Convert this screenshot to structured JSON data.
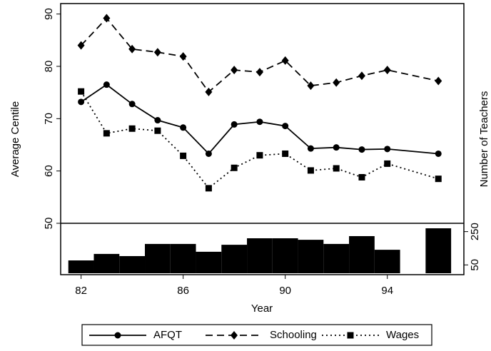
{
  "chart_data": {
    "type": "line",
    "x_label": "Year",
    "y_label": "Average Centile",
    "y2_label": "Number of Teachers",
    "x": [
      82,
      83,
      84,
      85,
      86,
      87,
      88,
      89,
      90,
      91,
      92,
      93,
      94,
      96
    ],
    "series": [
      {
        "name": "AFQT",
        "color": "#000000",
        "dash": "solid",
        "marker": "circle",
        "values": [
          73.2,
          76.5,
          72.8,
          69.7,
          68.3,
          63.3,
          68.9,
          69.4,
          68.6,
          64.3,
          64.5,
          64.1,
          64.2,
          63.3
        ]
      },
      {
        "name": "Schooling",
        "color": "#000000",
        "dash": "dashed",
        "marker": "diamond",
        "values": [
          84,
          89.2,
          83.3,
          82.7,
          81.9,
          75.1,
          79.3,
          78.9,
          81.1,
          76.3,
          76.9,
          78.2,
          79.3,
          77.2
        ]
      },
      {
        "name": "Wages",
        "color": "#000000",
        "dash": "dotted",
        "marker": "square",
        "values": [
          75.2,
          67.2,
          68.1,
          67.7,
          62.9,
          56.7,
          60.6,
          63,
          63.3,
          60.1,
          60.5,
          58.8,
          61.4,
          58.5
        ]
      }
    ],
    "bars": {
      "type": "bar",
      "axis": "y2",
      "color": "#000000",
      "values": [
        77,
        116,
        103,
        176,
        176,
        129,
        171,
        210,
        210,
        201,
        176,
        223,
        141,
        270
      ]
    },
    "xlim": [
      81.2,
      97
    ],
    "xticks": [
      82,
      86,
      90,
      94
    ],
    "ylim": [
      50,
      92
    ],
    "yticks": [
      50,
      60,
      70,
      80,
      90
    ],
    "y2lim": [
      0,
      300
    ],
    "y2ticks": [
      50,
      250
    ],
    "legend": "bottom"
  }
}
